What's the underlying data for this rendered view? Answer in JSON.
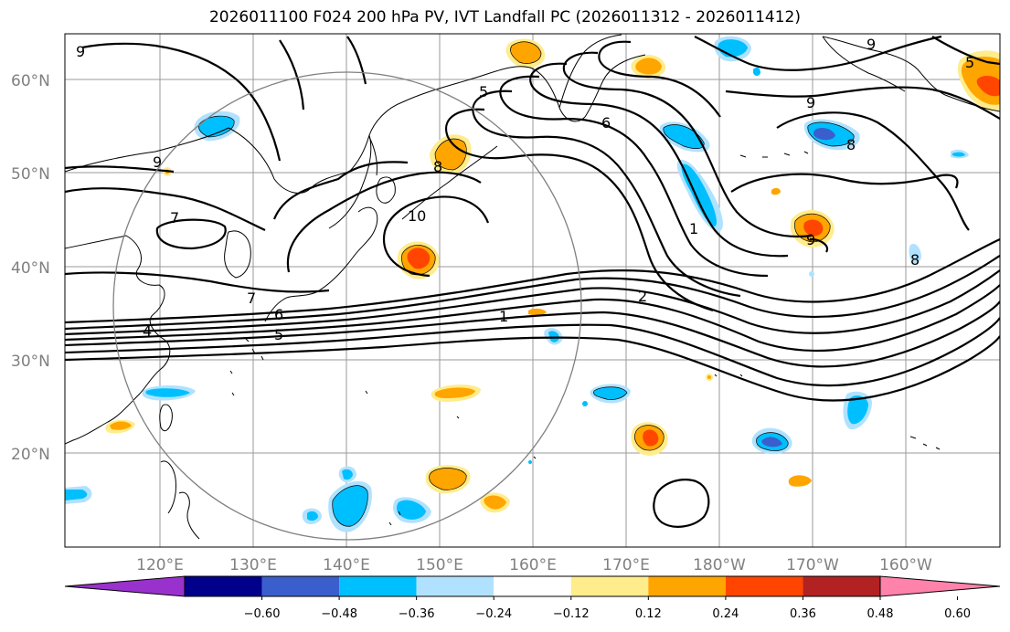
{
  "title": "2026011100 F024 200 hPa PV, IVT Landfall PC (2026011312 - 2026011412)",
  "lat_ticks": [
    "60°N",
    "50°N",
    "40°N",
    "30°N",
    "20°N"
  ],
  "lon_ticks": [
    "120°E",
    "130°E",
    "140°E",
    "150°E",
    "160°E",
    "170°E",
    "180°W",
    "170°W",
    "160°W"
  ],
  "colorbar": {
    "labels": [
      "−0.60",
      "−0.48",
      "−0.36",
      "−0.24",
      "−0.12",
      "0.12",
      "0.24",
      "0.36",
      "0.48",
      "0.60"
    ],
    "colors": [
      "#9932cc",
      "#00008b",
      "#3a5fcd",
      "#00bfff",
      "#b0e2ff",
      "#ffffff",
      "#ffec8b",
      "#ffa500",
      "#ff4500",
      "#b22222",
      "#ff82ab"
    ]
  },
  "contour_labels": [
    "9",
    "9",
    "7",
    "4",
    "7",
    "6",
    "5",
    "8",
    "10",
    "5",
    "6",
    "1",
    "2",
    "1",
    "9",
    "8",
    "9",
    "8",
    "5",
    "9"
  ],
  "colors": {
    "pv_contour": "#000000",
    "grid": "#9a9a9a",
    "tick_text": "#808080"
  }
}
